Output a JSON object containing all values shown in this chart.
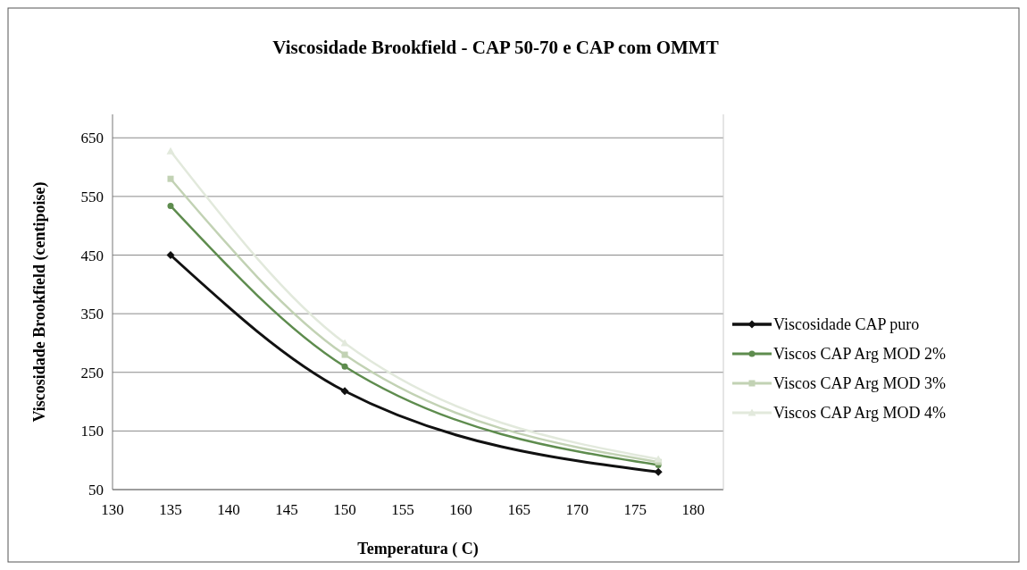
{
  "chart_data": {
    "type": "line",
    "title": "Viscosidade Brookfield - CAP 50-70 e CAP com OMMT",
    "xlabel": "Temperatura ( C)",
    "ylabel": "Viscosidade Brookfield (centipoise)",
    "x": [
      135,
      150,
      177
    ],
    "series": [
      {
        "name": "Viscosidade CAP puro",
        "color": "#111111",
        "values": [
          450,
          218,
          80
        ],
        "marker": "diamond"
      },
      {
        "name": "Viscos CAP Arg MOD 2%",
        "color": "#5e8c4e",
        "values": [
          534,
          260,
          92
        ],
        "marker": "circle"
      },
      {
        "name": "Viscos CAP Arg MOD 3%",
        "color": "#c2d2b4",
        "values": [
          580,
          280,
          97
        ],
        "marker": "square"
      },
      {
        "name": "Viscos CAP Arg MOD 4%",
        "color": "#e2e9dc",
        "values": [
          627,
          300,
          102
        ],
        "marker": "triangle"
      }
    ],
    "xlim": [
      130,
      182.6
    ],
    "xticks": [
      130,
      135,
      140,
      145,
      150,
      155,
      160,
      165,
      170,
      175,
      180
    ],
    "ylim": [
      50,
      690
    ],
    "yticks": [
      50,
      150,
      250,
      350,
      450,
      550,
      650
    ],
    "grid": "y",
    "legend": "right",
    "line_style": "solid"
  }
}
